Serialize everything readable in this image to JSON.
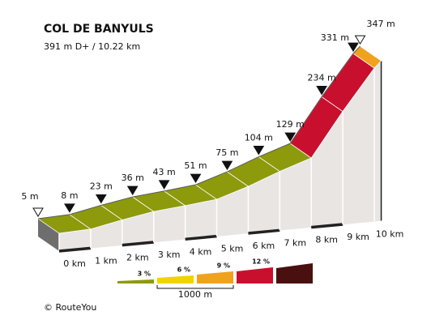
{
  "chart_data": {
    "type": "profile",
    "title": "COL DE BANYULS",
    "subtitle": "391 m D+ / 10.22 km",
    "km": [
      0,
      1,
      2,
      3,
      4,
      5,
      6,
      7,
      8,
      9,
      10,
      10.22
    ],
    "elevation": [
      5,
      8,
      23,
      36,
      43,
      51,
      75,
      104,
      129,
      234,
      331,
      347
    ],
    "value_labels": [
      "5 m",
      "8 m",
      "23 m",
      "36 m",
      "43 m",
      "51 m",
      "75 m",
      "104 m",
      "129 m",
      "234 m",
      "331 m",
      "347 m"
    ],
    "segment_colors": [
      "#8d9a0c",
      "#8d9a0c",
      "#8d9a0c",
      "#8d9a0c",
      "#8d9a0c",
      "#8d9a0c",
      "#8d9a0c",
      "#8d9a0c",
      "#c8102e",
      "#c8102e",
      "#f0a21e"
    ],
    "xticks": [
      {
        "value": 0,
        "label": "0 km"
      },
      {
        "value": 1,
        "label": "1 km"
      },
      {
        "value": 2,
        "label": "2 km"
      },
      {
        "value": 3,
        "label": "3 km"
      },
      {
        "value": 4,
        "label": "4 km"
      },
      {
        "value": 5,
        "label": "5 km"
      },
      {
        "value": 6,
        "label": "6 km"
      },
      {
        "value": 7,
        "label": "7 km"
      },
      {
        "value": 8,
        "label": "8 km"
      },
      {
        "value": 9,
        "label": "9 km"
      },
      {
        "value": 10,
        "label": "10 km"
      }
    ],
    "legend": [
      {
        "label": "3 %",
        "color": "#8d9a0c"
      },
      {
        "label": "6 %",
        "color": "#f2d200"
      },
      {
        "label": "9 %",
        "color": "#f0a21e"
      },
      {
        "label": "12 %",
        "color": "#c8102e"
      },
      {
        "color": "#4a1010"
      }
    ],
    "scale_label": "1000 m",
    "credit": "© RouteYou"
  }
}
